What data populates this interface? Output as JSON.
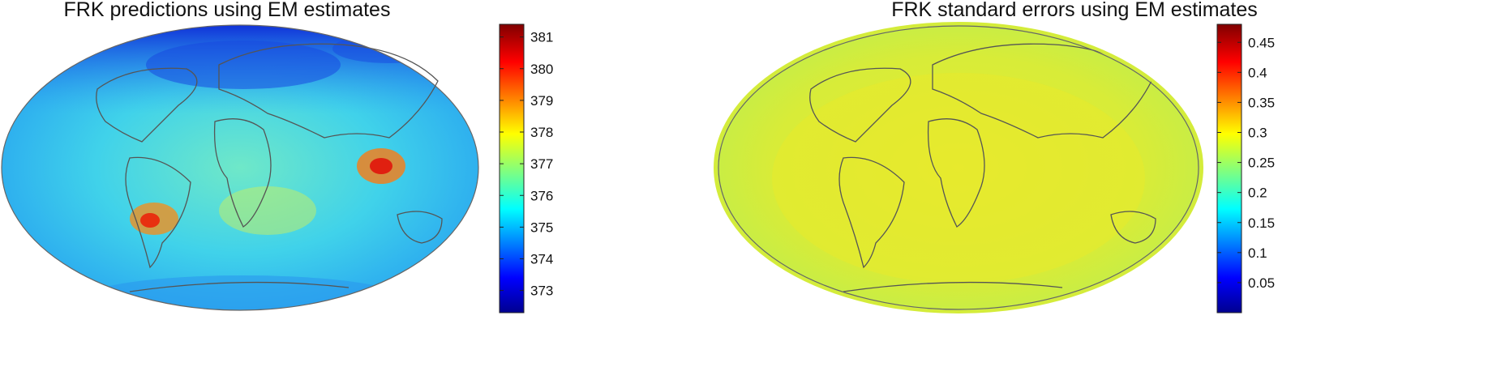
{
  "maps": [
    {
      "title": "FRK predictions using EM estimates",
      "colorbar": {
        "ticks": [
          "373",
          "374",
          "375",
          "376",
          "377",
          "378",
          "379",
          "380",
          "381"
        ],
        "tick_values": [
          373,
          374,
          375,
          376,
          377,
          378,
          379,
          380,
          381
        ],
        "range": [
          372.3,
          381.4
        ],
        "colormap": "jet"
      },
      "projection": "Hammer-Aitoff",
      "dominant_color": "#3fd3e6"
    },
    {
      "title": "FRK standard errors using EM estimates",
      "colorbar": {
        "ticks": [
          "0.05",
          "0.1",
          "0.15",
          "0.2",
          "0.25",
          "0.3",
          "0.35",
          "0.4",
          "0.45"
        ],
        "tick_values": [
          0.05,
          0.1,
          0.15,
          0.2,
          0.25,
          0.3,
          0.35,
          0.4,
          0.45
        ],
        "range": [
          0.0,
          0.48
        ],
        "colormap": "jet"
      },
      "projection": "Hammer-Aitoff",
      "dominant_color": "#e6e62e"
    }
  ]
}
